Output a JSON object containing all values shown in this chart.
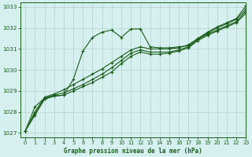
{
  "title": "Graphe pression niveau de la mer (hPa)",
  "bg_color": "#d6f0f0",
  "grid_color": "#b8d8d0",
  "line_color": "#1a5c1a",
  "xlim": [
    -0.5,
    23
  ],
  "ylim": [
    1026.8,
    1033.2
  ],
  "yticks": [
    1027,
    1028,
    1029,
    1030,
    1031,
    1032,
    1033
  ],
  "xticks": [
    0,
    1,
    2,
    3,
    4,
    5,
    6,
    7,
    8,
    9,
    10,
    11,
    12,
    13,
    14,
    15,
    16,
    17,
    18,
    19,
    20,
    21,
    22,
    23
  ],
  "series": [
    [
      1027.1,
      1028.25,
      1028.65,
      1028.75,
      1028.8,
      1029.55,
      1030.9,
      1031.55,
      1031.8,
      1031.9,
      1031.55,
      1031.95,
      1031.95,
      1031.1,
      1031.05,
      1031.05,
      1031.1,
      1031.15,
      1031.5,
      1031.8,
      1032.05,
      1032.25,
      1032.45,
      1033.05
    ],
    [
      1027.1,
      1028.0,
      1028.7,
      1028.85,
      1029.05,
      1029.3,
      1029.55,
      1029.8,
      1030.05,
      1030.35,
      1030.65,
      1030.95,
      1031.1,
      1031.0,
      1031.0,
      1031.0,
      1031.05,
      1031.2,
      1031.5,
      1031.75,
      1032.0,
      1032.2,
      1032.4,
      1032.9
    ],
    [
      1027.1,
      1027.9,
      1028.65,
      1028.8,
      1028.9,
      1029.1,
      1029.3,
      1029.55,
      1029.8,
      1030.1,
      1030.45,
      1030.8,
      1030.95,
      1030.85,
      1030.85,
      1030.85,
      1030.95,
      1031.1,
      1031.45,
      1031.7,
      1031.9,
      1032.1,
      1032.3,
      1032.8
    ],
    [
      1027.1,
      1027.85,
      1028.6,
      1028.75,
      1028.8,
      1029.0,
      1029.2,
      1029.4,
      1029.65,
      1029.9,
      1030.3,
      1030.65,
      1030.85,
      1030.75,
      1030.75,
      1030.8,
      1030.9,
      1031.05,
      1031.4,
      1031.65,
      1031.85,
      1032.05,
      1032.25,
      1032.7
    ]
  ]
}
